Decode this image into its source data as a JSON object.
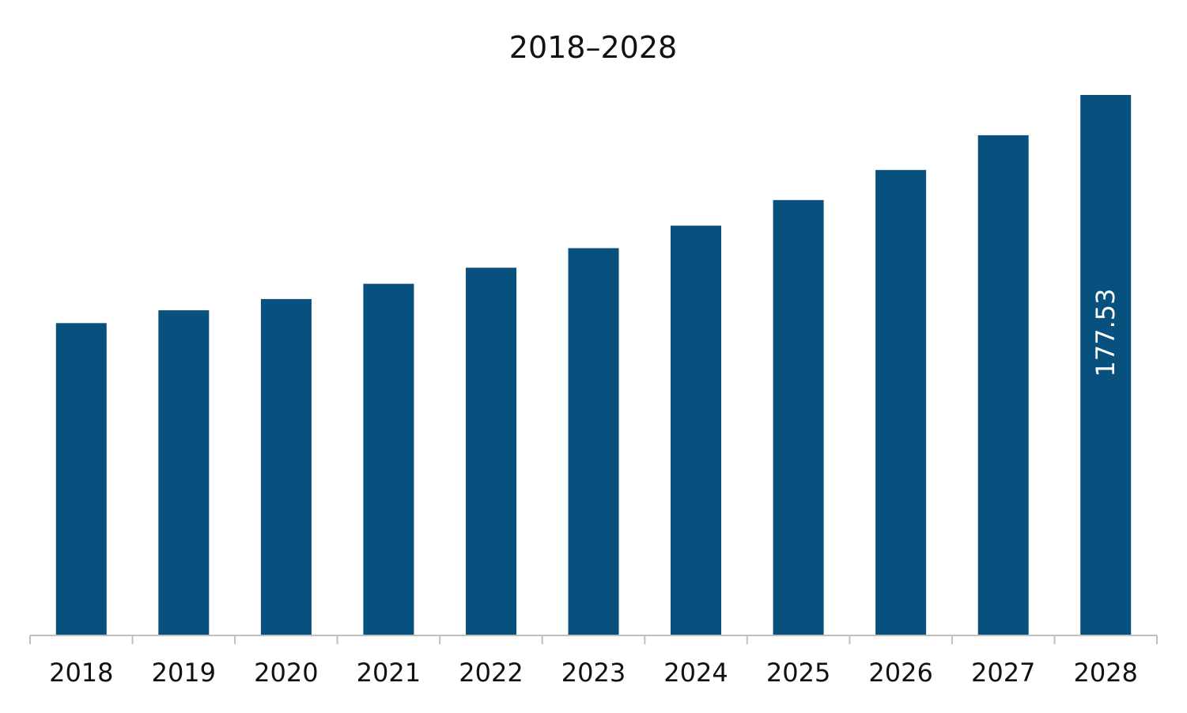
{
  "chart_data": {
    "type": "bar",
    "title": "2018–2028",
    "categories": [
      "2018",
      "2019",
      "2020",
      "2021",
      "2022",
      "2023",
      "2024",
      "2025",
      "2026",
      "2027",
      "2028"
    ],
    "values": [
      102.6,
      106.8,
      110.5,
      115.5,
      120.8,
      127.2,
      134.6,
      143.0,
      152.9,
      164.3,
      177.53
    ],
    "data_labels": [
      {
        "index": 10,
        "text": "177.53",
        "orientation": "vertical"
      }
    ],
    "ylim": [
      0,
      177.53
    ],
    "xlabel": "",
    "ylabel": "",
    "grid": false,
    "legend": "none",
    "y_axis_visible": false,
    "colors": {
      "bar": "#08507e",
      "axis": "#bfbfbf",
      "text": "#111111",
      "data_label": "#ffffff"
    }
  }
}
